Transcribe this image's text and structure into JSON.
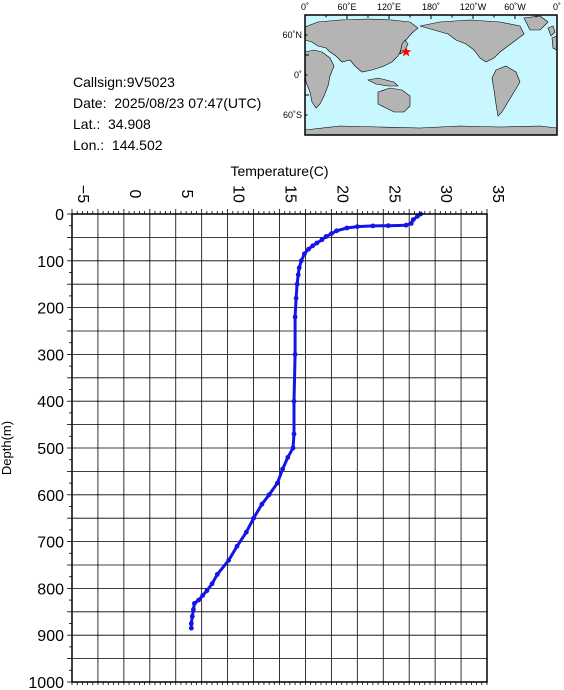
{
  "info": {
    "callsign": "Callsign:9V5023",
    "date": "Date:  2025/08/23 07:47(UTC)",
    "lat": "Lat.:  34.908",
    "lon": "Lon.:  144.502"
  },
  "map": {
    "lon_labels": [
      "0˚",
      "60˚E",
      "120˚E",
      "180˚",
      "120˚W",
      "60˚W",
      "0˚"
    ],
    "lat_labels": [
      "60˚N",
      "0˚",
      "60˚S"
    ],
    "ocean_color": "#c8f7ff",
    "land_color": "#b4b4b4",
    "marker_color": "#ff0000",
    "marker": {
      "lat": 34.908,
      "lon": 144.502
    }
  },
  "chart_data": {
    "type": "line",
    "xlabel": "Temperature(C)",
    "ylabel": "Depth(m)",
    "xlim": [
      -5,
      35
    ],
    "ylim": [
      0,
      1000
    ],
    "y_inverted": true,
    "x_ticks": [
      "-5",
      "0",
      "5",
      "10",
      "15",
      "20",
      "25",
      "30",
      "35"
    ],
    "y_ticks": [
      "0",
      "100",
      "200",
      "300",
      "400",
      "500",
      "600",
      "700",
      "800",
      "900",
      "1000"
    ],
    "grid": true,
    "color": "#1414e6",
    "series": [
      {
        "points": [
          [
            28.6,
            0
          ],
          [
            28.3,
            5
          ],
          [
            27.9,
            12
          ],
          [
            27.7,
            20
          ],
          [
            27.2,
            24
          ],
          [
            25.5,
            25
          ],
          [
            24.0,
            25.5
          ],
          [
            22.5,
            27
          ],
          [
            21.5,
            30
          ],
          [
            20.5,
            36
          ],
          [
            20.0,
            42
          ],
          [
            19.5,
            48
          ],
          [
            19.1,
            55
          ],
          [
            18.6,
            62
          ],
          [
            18.2,
            68
          ],
          [
            17.8,
            75
          ],
          [
            17.4,
            85
          ],
          [
            17.1,
            100
          ],
          [
            16.9,
            115
          ],
          [
            16.8,
            130
          ],
          [
            16.7,
            150
          ],
          [
            16.6,
            180
          ],
          [
            16.5,
            220
          ],
          [
            16.5,
            300
          ],
          [
            16.4,
            400
          ],
          [
            16.4,
            470
          ],
          [
            16.3,
            500
          ],
          [
            15.8,
            520
          ],
          [
            15.3,
            545
          ],
          [
            14.8,
            575
          ],
          [
            14.0,
            600
          ],
          [
            13.3,
            620
          ],
          [
            12.5,
            650
          ],
          [
            11.8,
            680
          ],
          [
            10.9,
            710
          ],
          [
            10.1,
            740
          ],
          [
            9.0,
            770
          ],
          [
            8.5,
            790
          ],
          [
            8.0,
            805
          ],
          [
            7.6,
            815
          ],
          [
            7.2,
            825
          ],
          [
            6.8,
            832
          ],
          [
            6.7,
            845
          ],
          [
            6.6,
            860
          ],
          [
            6.5,
            875
          ],
          [
            6.5,
            885
          ]
        ]
      }
    ]
  }
}
